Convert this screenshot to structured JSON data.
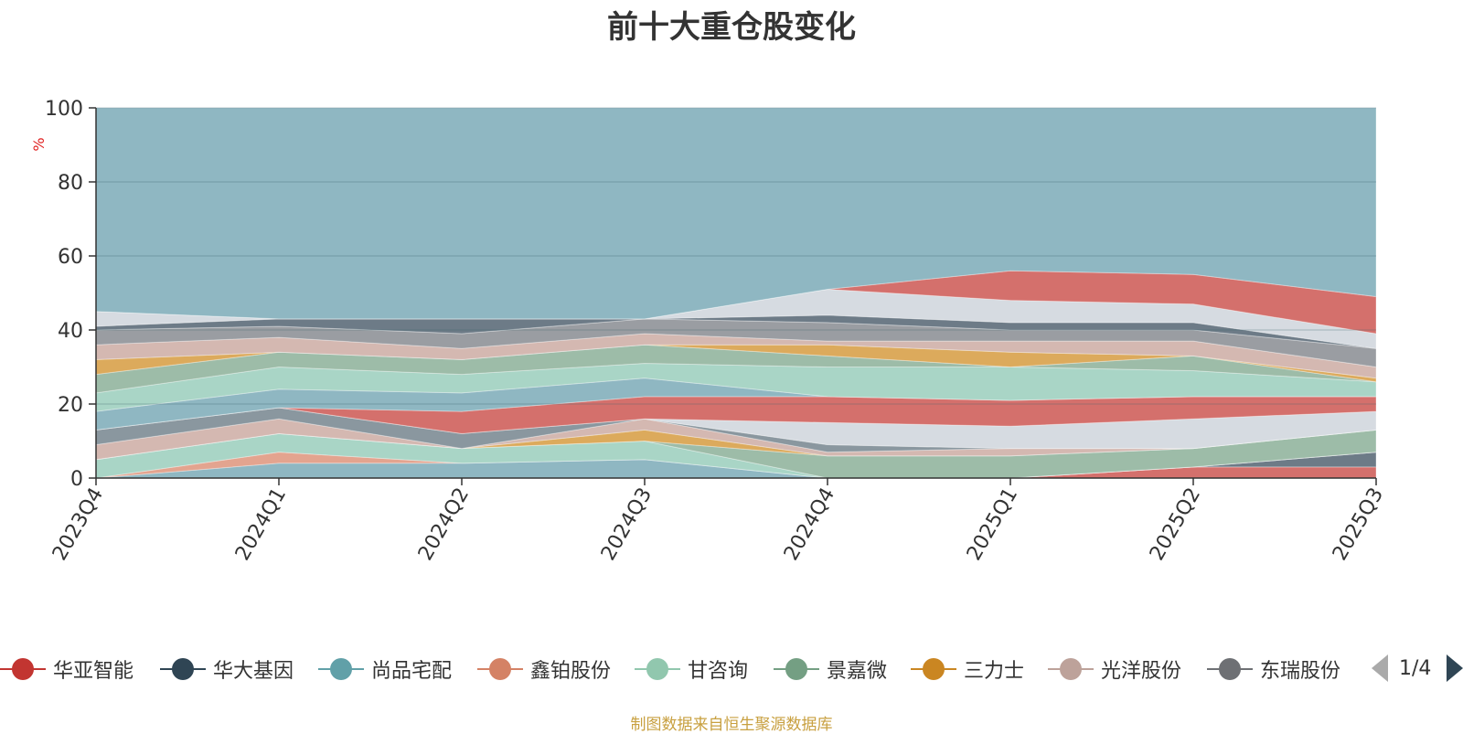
{
  "title": "前十大重仓股变化",
  "source_note": "制图数据来自恒生聚源数据库",
  "pager_text": "1/4",
  "chart_data": {
    "type": "area",
    "stacked": true,
    "title": "前十大重仓股变化",
    "ylabel": "%",
    "ylim": [
      0,
      100
    ],
    "yticks": [
      0,
      20,
      40,
      60,
      80,
      100
    ],
    "grid": true,
    "categories": [
      "2023Q4",
      "2024Q1",
      "2024Q2",
      "2024Q3",
      "2024Q4",
      "2025Q1",
      "2025Q2",
      "2025Q3"
    ],
    "boundaries": [
      [
        0,
        0,
        0,
        0,
        0,
        0,
        3,
        3
      ],
      [
        0,
        0,
        0,
        0,
        0,
        0,
        3,
        7
      ],
      [
        0,
        4,
        4,
        5,
        0,
        0,
        3,
        7
      ],
      [
        0,
        7,
        4,
        5,
        0,
        0,
        3,
        7
      ],
      [
        5,
        12,
        8,
        10,
        0,
        0,
        3,
        7
      ],
      [
        5,
        12,
        8,
        10,
        6,
        6,
        8,
        13
      ],
      [
        5,
        12,
        8,
        13,
        6,
        6,
        8,
        13
      ],
      [
        9,
        16,
        8,
        16,
        7,
        8,
        8,
        13
      ],
      [
        13,
        19,
        12,
        16,
        9,
        8,
        8,
        13
      ],
      [
        13,
        19,
        12,
        16,
        15,
        14,
        16,
        18
      ],
      [
        13,
        19,
        18,
        22,
        22,
        21,
        22,
        22
      ],
      [
        18,
        24,
        23,
        27,
        22,
        21,
        22,
        22
      ],
      [
        23,
        30,
        28,
        31,
        30,
        30,
        29,
        26
      ],
      [
        28,
        34,
        32,
        36,
        33,
        30,
        33,
        26
      ],
      [
        32,
        34,
        32,
        36,
        36,
        34,
        33,
        27
      ],
      [
        36,
        38,
        35,
        39,
        37,
        37,
        37,
        30
      ],
      [
        40,
        41,
        39,
        43,
        42,
        40,
        40,
        35
      ],
      [
        41,
        43,
        43,
        43,
        44,
        42,
        42,
        35
      ],
      [
        45,
        43,
        43,
        43,
        51,
        48,
        47,
        39
      ],
      [
        45,
        43,
        43,
        43,
        51,
        56,
        55,
        49
      ],
      [
        100,
        100,
        100,
        100,
        100,
        100,
        100,
        100
      ]
    ],
    "band_colors": [
      "#d4706c",
      "#6d7b87",
      "#8fb7c2",
      "#e3a48f",
      "#a9d5c6",
      "#9dbca8",
      "#dcaa5c",
      "#d4b8b1",
      "#8a979f",
      "#d6dbe1",
      "#d4706c",
      "#8fb7c2",
      "#a9d5c6",
      "#9dbca8",
      "#dcaa5c",
      "#d4b8b1",
      "#9a9da2",
      "#6d7b87",
      "#d6dbe1",
      "#d4706c",
      "#8fb7c2"
    ],
    "legend": [
      {
        "name": "华亚智能",
        "color": "#c23531"
      },
      {
        "name": "华大基因",
        "color": "#2f4554"
      },
      {
        "name": "尚品宅配",
        "color": "#61a0a8"
      },
      {
        "name": "鑫铂股份",
        "color": "#d48265"
      },
      {
        "name": "甘咨询",
        "color": "#91c7ae"
      },
      {
        "name": "景嘉微",
        "color": "#749f83"
      },
      {
        "name": "三力士",
        "color": "#ca8622"
      },
      {
        "name": "光洋股份",
        "color": "#bda29a"
      },
      {
        "name": "东瑞股份",
        "color": "#6e7074"
      }
    ]
  }
}
